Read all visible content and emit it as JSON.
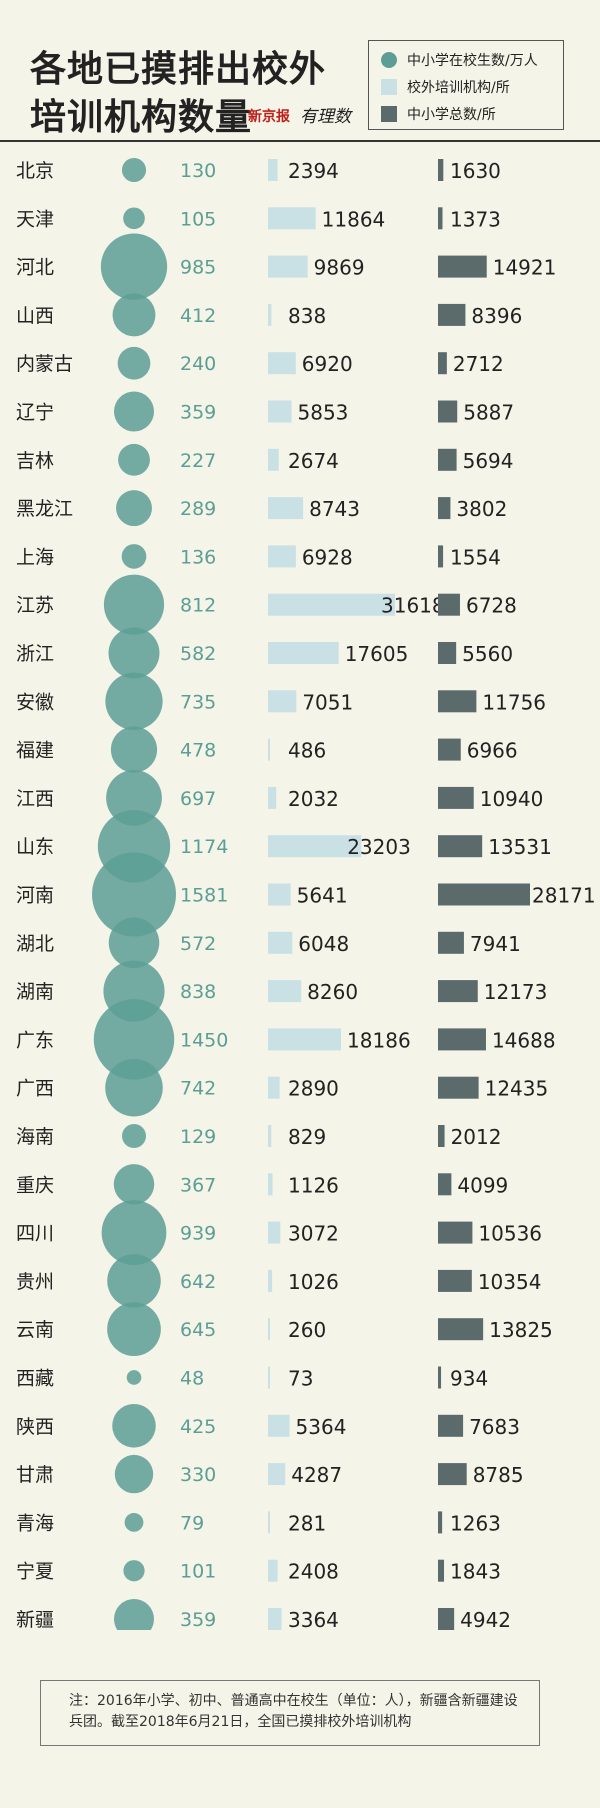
{
  "title": {
    "line1": "各地已摸排出校外",
    "line2": "培训机构数量",
    "brand": "新京报",
    "brand_script": "有理数"
  },
  "legend": [
    {
      "label": "中小学在校生数/万人",
      "color": "#5c9e95",
      "shape": "circle"
    },
    {
      "label": "校外培训机构/所",
      "color": "#c9e1e5",
      "shape": "square"
    },
    {
      "label": "中小学总数/所",
      "color": "#5b6b6b",
      "shape": "square"
    }
  ],
  "chart_data": {
    "type": "table",
    "columns": [
      "中小学在校生数/万人",
      "校外培训机构/所",
      "中小学总数/所"
    ],
    "rows": [
      {
        "province": "北京",
        "students": 130,
        "institutions": 2394,
        "schools": 1630
      },
      {
        "province": "天津",
        "students": 105,
        "institutions": 11864,
        "schools": 1373
      },
      {
        "province": "河北",
        "students": 985,
        "institutions": 9869,
        "schools": 14921
      },
      {
        "province": "山西",
        "students": 412,
        "institutions": 838,
        "schools": 8396
      },
      {
        "province": "内蒙古",
        "students": 240,
        "institutions": 6920,
        "schools": 2712
      },
      {
        "province": "辽宁",
        "students": 359,
        "institutions": 5853,
        "schools": 5887
      },
      {
        "province": "吉林",
        "students": 227,
        "institutions": 2674,
        "schools": 5694
      },
      {
        "province": "黑龙江",
        "students": 289,
        "institutions": 8743,
        "schools": 3802
      },
      {
        "province": "上海",
        "students": 136,
        "institutions": 6928,
        "schools": 1554
      },
      {
        "province": "江苏",
        "students": 812,
        "institutions": 31618,
        "schools": 6728
      },
      {
        "province": "浙江",
        "students": 582,
        "institutions": 17605,
        "schools": 5560
      },
      {
        "province": "安徽",
        "students": 735,
        "institutions": 7051,
        "schools": 11756
      },
      {
        "province": "福建",
        "students": 478,
        "institutions": 486,
        "schools": 6966
      },
      {
        "province": "江西",
        "students": 697,
        "institutions": 2032,
        "schools": 10940
      },
      {
        "province": "山东",
        "students": 1174,
        "institutions": 23203,
        "schools": 13531
      },
      {
        "province": "河南",
        "students": 1581,
        "institutions": 5641,
        "schools": 28171
      },
      {
        "province": "湖北",
        "students": 572,
        "institutions": 6048,
        "schools": 7941
      },
      {
        "province": "湖南",
        "students": 838,
        "institutions": 8260,
        "schools": 12173
      },
      {
        "province": "广东",
        "students": 1450,
        "institutions": 18186,
        "schools": 14688
      },
      {
        "province": "广西",
        "students": 742,
        "institutions": 2890,
        "schools": 12435
      },
      {
        "province": "海南",
        "students": 129,
        "institutions": 829,
        "schools": 2012
      },
      {
        "province": "重庆",
        "students": 367,
        "institutions": 1126,
        "schools": 4099
      },
      {
        "province": "四川",
        "students": 939,
        "institutions": 3072,
        "schools": 10536
      },
      {
        "province": "贵州",
        "students": 642,
        "institutions": 1026,
        "schools": 10354
      },
      {
        "province": "云南",
        "students": 645,
        "institutions": 260,
        "schools": 13825
      },
      {
        "province": "西藏",
        "students": 48,
        "institutions": 73,
        "schools": 934
      },
      {
        "province": "陕西",
        "students": 425,
        "institutions": 5364,
        "schools": 7683
      },
      {
        "province": "甘肃",
        "students": 330,
        "institutions": 4287,
        "schools": 8785
      },
      {
        "province": "青海",
        "students": 79,
        "institutions": 281,
        "schools": 1263
      },
      {
        "province": "宁夏",
        "students": 101,
        "institutions": 2408,
        "schools": 1843
      },
      {
        "province": "新疆",
        "students": 359,
        "institutions": 3364,
        "schools": 4942
      }
    ]
  },
  "note": "注：2016年小学、初中、普通高中在校生（单位：人），新疆含新疆建设兵团。截至2018年6月21日，全国已摸排校外培训机构"
}
